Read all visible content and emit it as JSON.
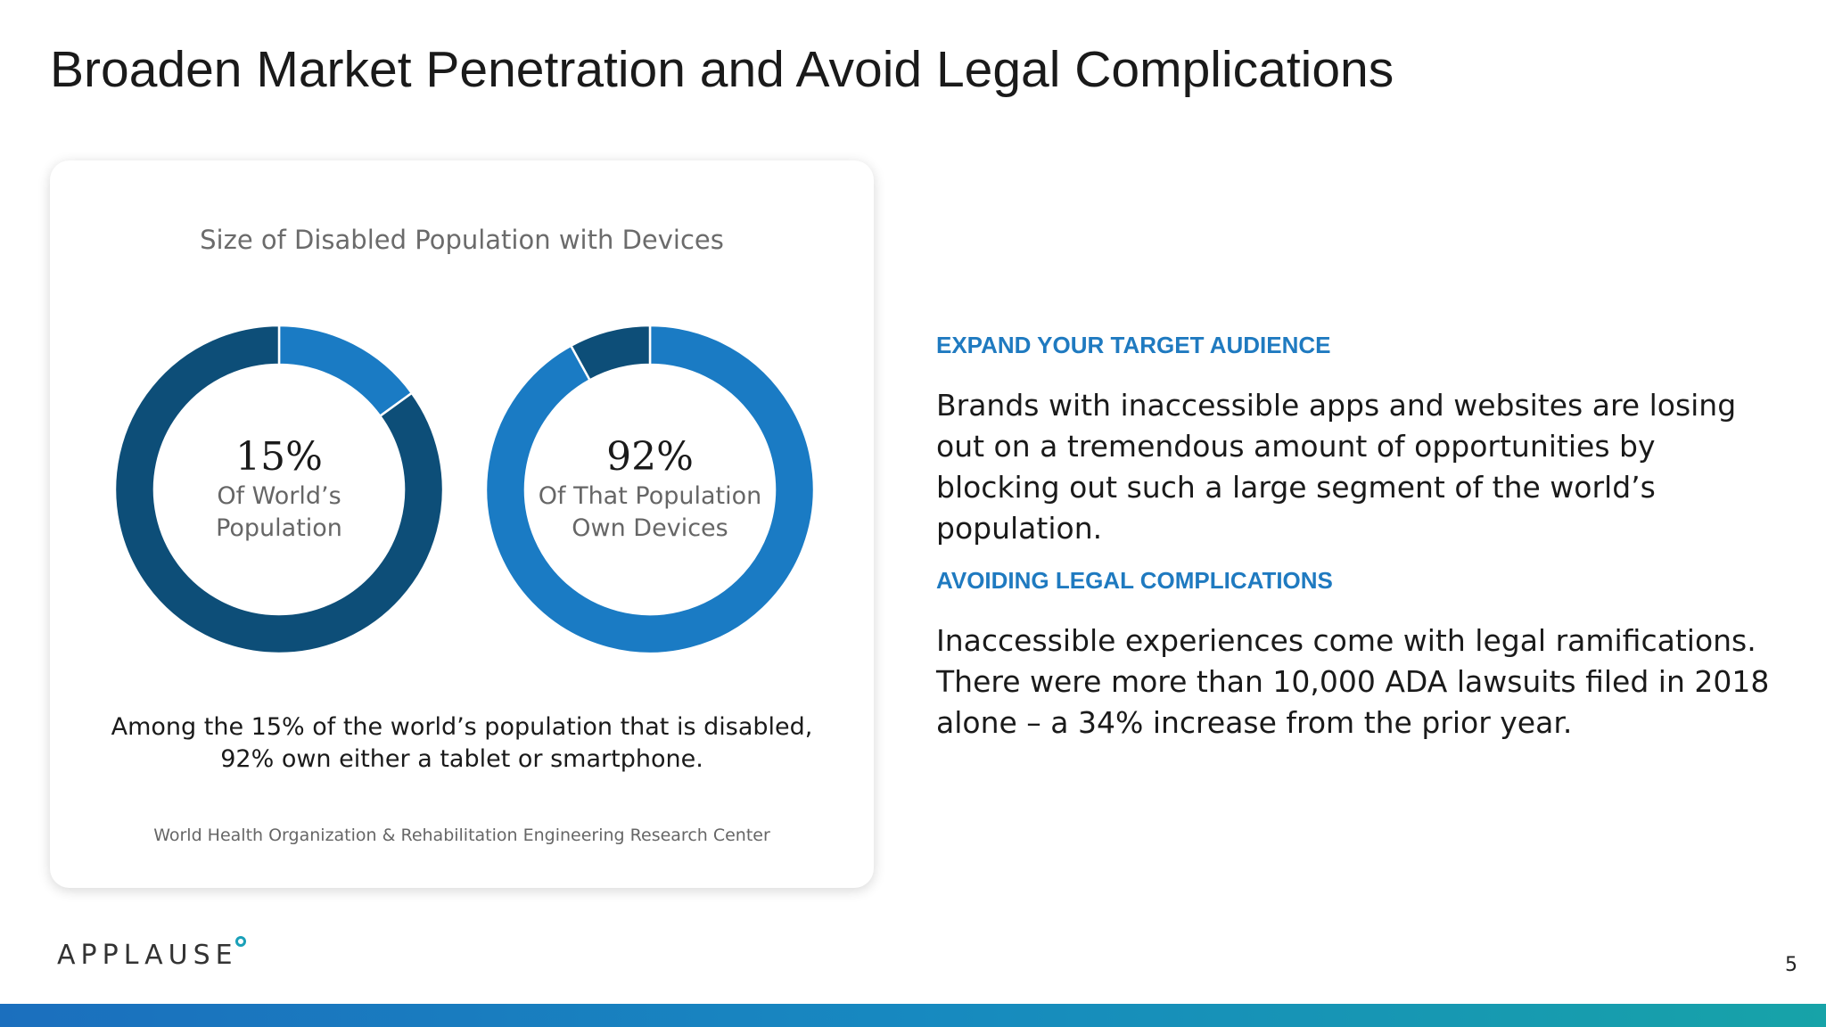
{
  "slide": {
    "title": "Broaden Market Penetration and Avoid Legal Complications",
    "page_number": "5"
  },
  "card": {
    "title": "Size of Disabled Population with Devices",
    "note": "Among the 15% of the world’s population that is disabled, 92% own either a tablet or smartphone.",
    "source": "World Health Organization & Rehabilitation Engineering Research Center"
  },
  "chart_data": [
    {
      "type": "pie",
      "variant": "donut",
      "title": "",
      "center_value": "15%",
      "center_label": "Of World’s Population",
      "slices": [
        {
          "value": 15,
          "color": "#1a7bc4",
          "highlighted": true
        },
        {
          "value": 85,
          "color": "#0d4e78",
          "highlighted": false
        }
      ]
    },
    {
      "type": "pie",
      "variant": "donut",
      "title": "",
      "center_value": "92%",
      "center_label": "Of That Population Own Devices",
      "slices": [
        {
          "value": 92,
          "color": "#1a7bc4",
          "highlighted": true
        },
        {
          "value": 8,
          "color": "#0d4e78",
          "highlighted": false
        }
      ]
    }
  ],
  "sections": [
    {
      "heading": "EXPAND YOUR TARGET AUDIENCE",
      "body": "Brands with inaccessible apps and websites are losing out on a tremendous amount of opportunities by blocking out such a large segment of the world’s population."
    },
    {
      "heading": "AVOIDING LEGAL COMPLICATIONS",
      "body": "Inaccessible experiences come with legal ramifications. There were more than 10,000 ADA lawsuits filed in 2018 alone – a 34% increase from the prior year."
    }
  ],
  "logo": {
    "text": "APPLAUSE"
  },
  "colors": {
    "accent_blue": "#1f7ac0",
    "donut_light": "#1a7bc4",
    "donut_dark": "#0d4e78",
    "bar_start": "#1b6fbe",
    "bar_end": "#17a3a8"
  }
}
